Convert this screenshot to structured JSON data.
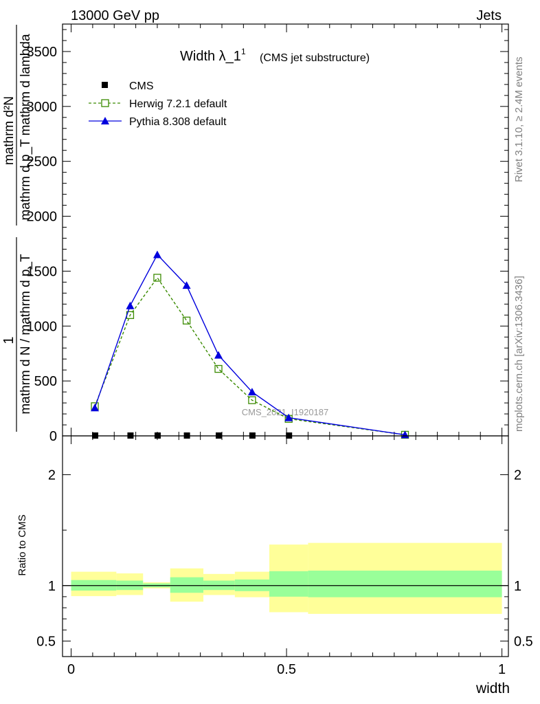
{
  "header": {
    "left": "13000 GeV pp",
    "right": "Jets"
  },
  "side_text": {
    "rivet": "Rivet 3.1.10, ≥ 2.4M events",
    "source": "mcplots.cern.ch [arXiv:1306.3436]"
  },
  "chart_data": [
    {
      "type": "line",
      "title": "Width λ_1",
      "title_sup": "1",
      "subtitle": "(CMS jet substructure)",
      "watermark": "CMS_2021_I1920187",
      "ylabel_numerator": "mathrm d²N",
      "ylabel_denominator": "mathrm d p_T mathrm d lambda",
      "ylabel_prefix": "1",
      "ylabel_prefix_den": "mathrm d N / mathrm d p_T",
      "xlim": [
        -0.02,
        1.015
      ],
      "ylim": [
        0,
        3750
      ],
      "y_ticks": [
        0,
        500,
        1000,
        1500,
        2000,
        2500,
        3000,
        3500
      ],
      "y_tick_labels": [
        "0",
        "500",
        "1000",
        "1500",
        "2000",
        "2500",
        "3000",
        "3500"
      ],
      "legend_position": "top-left",
      "series": [
        {
          "name": "CMS",
          "style": "data",
          "color": "#000000",
          "x": [
            0.055,
            0.137,
            0.2,
            0.268,
            0.342,
            0.42,
            0.505
          ],
          "y": [
            0,
            0,
            0,
            0,
            0,
            0,
            0
          ]
        },
        {
          "name": "Herwig 7.2.1 default",
          "style": "open-square-dashed",
          "color": "#3a8a00",
          "x": [
            0.055,
            0.137,
            0.2,
            0.268,
            0.342,
            0.42,
            0.505,
            0.775
          ],
          "y": [
            270,
            1100,
            1440,
            1050,
            610,
            325,
            155,
            10
          ]
        },
        {
          "name": "Pythia 8.308 default",
          "style": "filled-triangle-solid",
          "color": "#0000dd",
          "x": [
            0.055,
            0.137,
            0.2,
            0.268,
            0.342,
            0.42,
            0.505,
            0.775
          ],
          "y": [
            255,
            1185,
            1650,
            1370,
            735,
            400,
            165,
            10
          ]
        }
      ]
    },
    {
      "type": "area",
      "ylabel": "Ratio to CMS",
      "xlabel": "width",
      "xlim": [
        -0.02,
        1.015
      ],
      "ylim": [
        0.36,
        2.35
      ],
      "y_ticks": [
        0.5,
        1,
        2
      ],
      "y_tick_labels": [
        "0.5",
        "1",
        "2"
      ],
      "x_ticks": [
        0,
        0.5,
        1
      ],
      "x_tick_labels": [
        "0",
        "0.5",
        "1"
      ],
      "reference_line": 1,
      "band_colors": {
        "inner": "#99ff99",
        "outer": "#ffff99"
      },
      "bins": [
        {
          "x0": 0.0,
          "x1": 0.105,
          "inner": [
            0.955,
            1.05
          ],
          "outer": [
            0.905,
            1.125
          ]
        },
        {
          "x0": 0.105,
          "x1": 0.167,
          "inner": [
            0.96,
            1.045
          ],
          "outer": [
            0.915,
            1.11
          ]
        },
        {
          "x0": 0.167,
          "x1": 0.23,
          "inner": [
            0.985,
            1.02
          ],
          "outer": [
            0.975,
            1.03
          ]
        },
        {
          "x0": 0.23,
          "x1": 0.307,
          "inner": [
            0.935,
            1.075
          ],
          "outer": [
            0.855,
            1.155
          ]
        },
        {
          "x0": 0.307,
          "x1": 0.38,
          "inner": [
            0.96,
            1.045
          ],
          "outer": [
            0.915,
            1.105
          ]
        },
        {
          "x0": 0.38,
          "x1": 0.46,
          "inner": [
            0.95,
            1.055
          ],
          "outer": [
            0.895,
            1.125
          ]
        },
        {
          "x0": 0.46,
          "x1": 0.55,
          "inner": [
            0.9,
            1.13
          ],
          "outer": [
            0.76,
            1.37
          ]
        },
        {
          "x0": 0.55,
          "x1": 1.0,
          "inner": [
            0.895,
            1.135
          ],
          "outer": [
            0.745,
            1.385
          ]
        }
      ]
    }
  ]
}
